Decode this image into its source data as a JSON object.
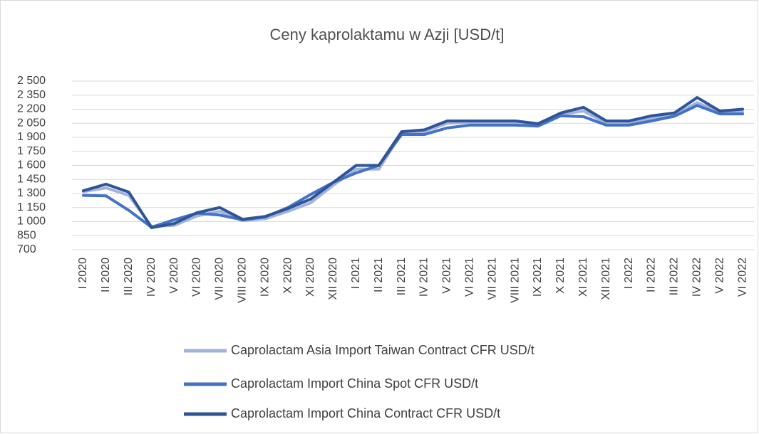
{
  "chart_data": {
    "type": "line",
    "title": "Ceny kaprolaktamu w Azji [USD/t]",
    "categories": [
      "I 2020",
      "II 2020",
      "III 2020",
      "IV 2020",
      "V 2020",
      "VI 2020",
      "VII 2020",
      "VIII 2020",
      "IX 2020",
      "X 2020",
      "XI 2020",
      "XII 2020",
      "I 2021",
      "II 2021",
      "III 2021",
      "IV 2021",
      "V 2021",
      "VI 2021",
      "VII 2021",
      "VIII 2021",
      "IX 2021",
      "X 2021",
      "XI 2021",
      "XII 2021",
      "I 2022",
      "II 2022",
      "III 2022",
      "IV 2022",
      "V 2022",
      "VI 2022"
    ],
    "series": [
      {
        "name": "Caprolactam Asia Import Taiwan Contract CFR USD/t",
        "color": "#a3b3df",
        "values": [
          1320,
          1360,
          1280,
          950,
          960,
          1060,
          1110,
          1010,
          1030,
          1110,
          1200,
          1390,
          1560,
          1560,
          1950,
          1960,
          2050,
          2060,
          2060,
          2060,
          2020,
          2150,
          2180,
          2050,
          2050,
          2100,
          2140,
          2270,
          2170,
          2170
        ]
      },
      {
        "name": "Caprolactam Import China Spot CFR USD/t",
        "color": "#4472c4",
        "values": [
          1280,
          1275,
          1120,
          940,
          1020,
          1090,
          1070,
          1020,
          1050,
          1150,
          1290,
          1420,
          1520,
          1600,
          1930,
          1930,
          2000,
          2030,
          2030,
          2030,
          2020,
          2130,
          2120,
          2030,
          2030,
          2075,
          2125,
          2240,
          2150,
          2150
        ]
      },
      {
        "name": "Caprolactam Import China Contract CFR USD/t",
        "color": "#2f5597",
        "values": [
          1330,
          1400,
          1315,
          935,
          980,
          1095,
          1150,
          1025,
          1055,
          1140,
          1240,
          1420,
          1600,
          1600,
          1960,
          1980,
          2075,
          2075,
          2075,
          2075,
          2045,
          2160,
          2220,
          2075,
          2075,
          2130,
          2160,
          2325,
          2180,
          2200
        ]
      }
    ],
    "ylim": [
      700,
      2500
    ],
    "yticks": [
      700,
      850,
      {
        "value": 1000,
        "label": "1 000"
      },
      {
        "value": 1150,
        "label": "1 150"
      },
      {
        "value": 1300,
        "label": "1 300"
      },
      {
        "value": 1450,
        "label": "1 450"
      },
      {
        "value": 1600,
        "label": "1 600"
      },
      {
        "value": 1750,
        "label": "1 750"
      },
      {
        "value": 1900,
        "label": "1 900"
      },
      {
        "value": 2050,
        "label": "2 050"
      },
      {
        "value": 2200,
        "label": "2 200"
      },
      {
        "value": 2350,
        "label": "2 350"
      },
      {
        "value": 2500,
        "label": "2 500"
      }
    ],
    "grid": true
  }
}
